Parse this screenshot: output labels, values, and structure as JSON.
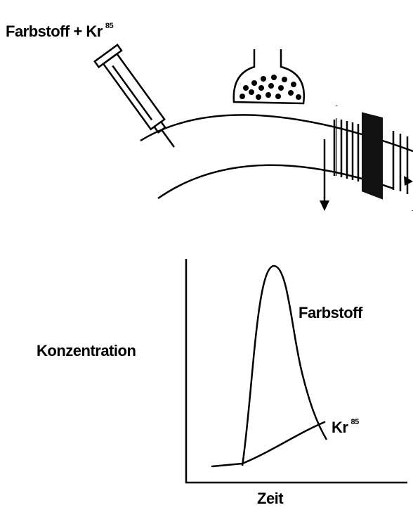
{
  "labels": {
    "injection": "Farbstoff + Kr",
    "injection_sup": "85",
    "y_axis": "Konzentration",
    "x_axis": "Zeit",
    "curve_dye": "Farbstoff",
    "curve_kr": "Kr",
    "curve_kr_sup": "85"
  }
}
